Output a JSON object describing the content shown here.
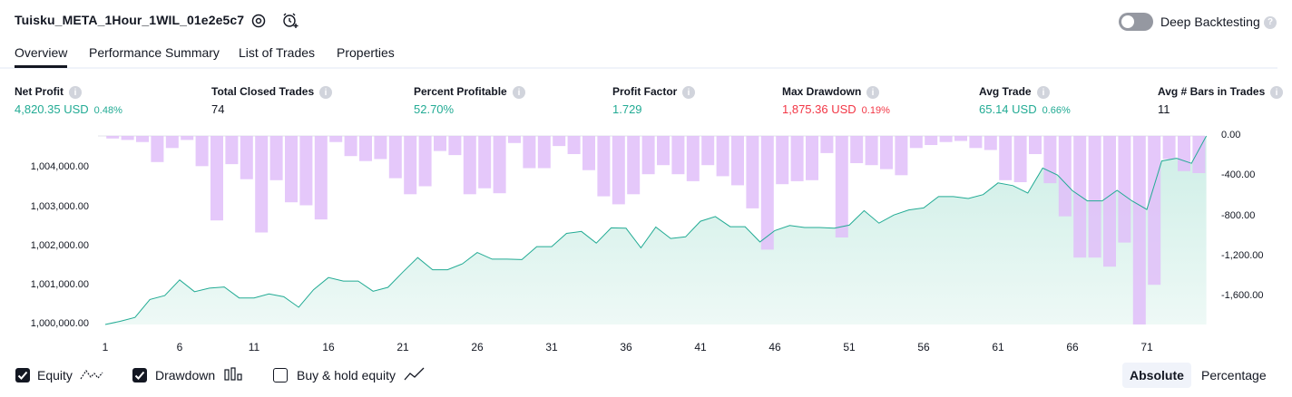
{
  "header": {
    "strategy_name": "Tuisku_META_1Hour_1WIL_01e2e5c7",
    "settings_icon": "gear-icon",
    "alert_icon": "alarm-clock-plus-icon",
    "deep_backtesting_label": "Deep Backtesting",
    "deep_backtesting_enabled": false
  },
  "tabs": [
    {
      "label": "Overview",
      "active": true
    },
    {
      "label": "Performance Summary",
      "active": false
    },
    {
      "label": "List of Trades",
      "active": false
    },
    {
      "label": "Properties",
      "active": false
    }
  ],
  "metrics": [
    {
      "label": "Net Profit",
      "value": "4,820.35 USD",
      "pct": "0.48%",
      "tone": "green"
    },
    {
      "label": "Total Closed Trades",
      "value": "74",
      "pct": "",
      "tone": "dark"
    },
    {
      "label": "Percent Profitable",
      "value": "52.70%",
      "pct": "",
      "tone": "green"
    },
    {
      "label": "Profit Factor",
      "value": "1.729",
      "pct": "",
      "tone": "green"
    },
    {
      "label": "Max Drawdown",
      "value": "1,875.36 USD",
      "pct": "0.19%",
      "tone": "red"
    },
    {
      "label": "Avg Trade",
      "value": "65.14 USD",
      "pct": "0.66%",
      "tone": "green"
    },
    {
      "label": "Avg # Bars in Trades",
      "value": "11",
      "pct": "",
      "tone": "dark"
    }
  ],
  "chart_data": {
    "type": "area",
    "colors": {
      "equity_line": "#22ab94",
      "equity_fill": "#cdeee6",
      "drawdown_bar": "#e1bef9",
      "drawdown_overlap": "#b7b4ec"
    },
    "x_ticks": [
      "1",
      "6",
      "11",
      "16",
      "21",
      "26",
      "31",
      "36",
      "41",
      "46",
      "51",
      "56",
      "61",
      "66",
      "71"
    ],
    "left_axis": {
      "ticks": [
        "1,000,000.00",
        "1,001,000.00",
        "1,002,000.00",
        "1,003,000.00",
        "1,004,000.00"
      ],
      "tick_values": [
        1000000,
        1001000,
        1002000,
        1003000,
        1004000
      ],
      "range": [
        1000000,
        1004820
      ]
    },
    "right_axis": {
      "ticks": [
        "0.00",
        "-400.00",
        "-800.00",
        "-1,200.00",
        "-1,600.00"
      ],
      "tick_values": [
        0,
        -400,
        -800,
        -1200,
        -1600
      ],
      "range": [
        -1875,
        0
      ]
    },
    "series": [
      {
        "name": "Equity",
        "values": [
          1000000,
          1000080,
          1000180,
          1000640,
          1000740,
          1001140,
          1000840,
          1000930,
          1000960,
          1000680,
          1000680,
          1000780,
          1000710,
          1000440,
          1000890,
          1001200,
          1001110,
          1001110,
          1000850,
          1000950,
          1001340,
          1001710,
          1001400,
          1001400,
          1001550,
          1001840,
          1001670,
          1001670,
          1001660,
          1001990,
          1001990,
          1002330,
          1002380,
          1002080,
          1002470,
          1002460,
          1001960,
          1002490,
          1002200,
          1002240,
          1002640,
          1002760,
          1002500,
          1002500,
          1002110,
          1002400,
          1002530,
          1002480,
          1002480,
          1002460,
          1002540,
          1002910,
          1002590,
          1002800,
          1002930,
          1002980,
          1003270,
          1003270,
          1003220,
          1003320,
          1003620,
          1003550,
          1003360,
          1004000,
          1003820,
          1003420,
          1003160,
          1003160,
          1003430,
          1003160,
          1002940,
          1004180,
          1004250,
          1004120,
          1004820
        ]
      },
      {
        "name": "Drawdown",
        "values": [
          -25,
          -40,
          -60,
          -260,
          -120,
          -40,
          -300,
          -840,
          -280,
          -430,
          -960,
          -440,
          -660,
          -690,
          -830,
          -60,
          -200,
          -250,
          -230,
          -420,
          -580,
          -500,
          -150,
          -190,
          -580,
          -520,
          -570,
          -70,
          -320,
          -320,
          -100,
          -180,
          -340,
          -600,
          -680,
          -580,
          -380,
          -290,
          -380,
          -450,
          -290,
          -400,
          -490,
          -720,
          -1130,
          -480,
          -450,
          -440,
          -170,
          -1010,
          -270,
          -290,
          -330,
          -390,
          -120,
          -90,
          -60,
          -50,
          -120,
          -140,
          -440,
          -460,
          -180,
          -470,
          -800,
          -1210,
          -1210,
          -1300,
          -1060,
          -1875,
          -1480,
          -230,
          -350,
          -370
        ]
      }
    ],
    "legend": [
      {
        "label": "Equity",
        "checked": true,
        "icon": "equity-line-icon"
      },
      {
        "label": "Drawdown",
        "checked": true,
        "icon": "drawdown-bars-icon"
      },
      {
        "label": "Buy & hold equity",
        "checked": false,
        "icon": "buy-hold-line-icon"
      }
    ],
    "scale_options": [
      "Absolute",
      "Percentage"
    ],
    "scale_selected": "Absolute"
  }
}
